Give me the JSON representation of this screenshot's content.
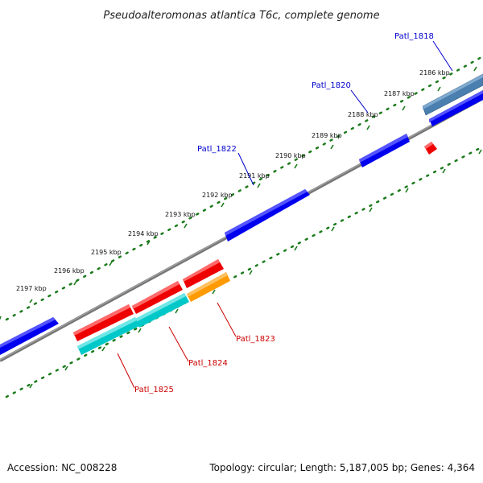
{
  "title": "Pseudoalteromonas atlantica T6c, complete genome",
  "ruler_ticks": [
    {
      "label": "2186 kbp"
    },
    {
      "label": "2187 kbp"
    },
    {
      "label": "2188 kbp"
    },
    {
      "label": "2189 kbp"
    },
    {
      "label": "2190 kbp"
    },
    {
      "label": "2191 kbp"
    },
    {
      "label": "2192 kbp"
    },
    {
      "label": "2193 kbp"
    },
    {
      "label": "2194 kbp"
    },
    {
      "label": "2195 kbp"
    },
    {
      "label": "2196 kbp"
    },
    {
      "label": "2197 kbp"
    }
  ],
  "gene_labels": {
    "patl_1818": "Patl_1818",
    "patl_1820": "Patl_1820",
    "patl_1822": "Patl_1822",
    "patl_1823": "Patl_1823",
    "patl_1824": "Patl_1824",
    "patl_1825": "Patl_1825"
  },
  "colors": {
    "backbone": "#808080",
    "ruler_dots": "#1a7a1a",
    "forward_gene": "#0000ee",
    "reverse_gene": "#ee0000",
    "cds_cyan": "#00c8c8",
    "cds_orange": "#ff9a00",
    "cds_steelblue": "#4a7fb0",
    "label_blue": "#0000cc",
    "label_red": "#cc0000"
  },
  "footer": {
    "accession": "Accession: NC_008228",
    "topology": "Topology: circular; Length: 5,187,005 bp; Genes: 4,364"
  }
}
